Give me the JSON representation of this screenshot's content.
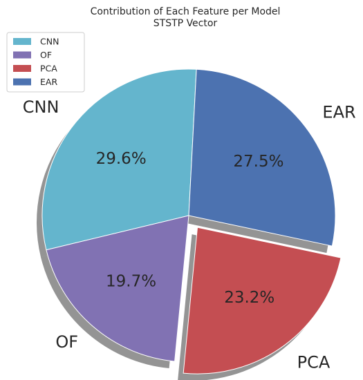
{
  "chart_data": {
    "type": "pie",
    "title": "Contribution of Each Feature per Model",
    "subtitle": "STSTP Vector",
    "slices": [
      {
        "label": "CNN",
        "value": 29.6,
        "pct_label": "29.6%",
        "color": "#64b5cd",
        "explode": 0
      },
      {
        "label": "OF",
        "value": 19.7,
        "pct_label": "19.7%",
        "color": "#8172b3",
        "explode": 0
      },
      {
        "label": "PCA",
        "value": 23.2,
        "pct_label": "23.2%",
        "color": "#c44e52",
        "explode": 0.1
      },
      {
        "label": "EAR",
        "value": 27.5,
        "pct_label": "27.5%",
        "color": "#4c72b0",
        "explode": 0
      }
    ],
    "legend": {
      "placement": "top-left",
      "entries": [
        "CNN",
        "OF",
        "PCA",
        "EAR"
      ]
    },
    "shadow": true
  }
}
